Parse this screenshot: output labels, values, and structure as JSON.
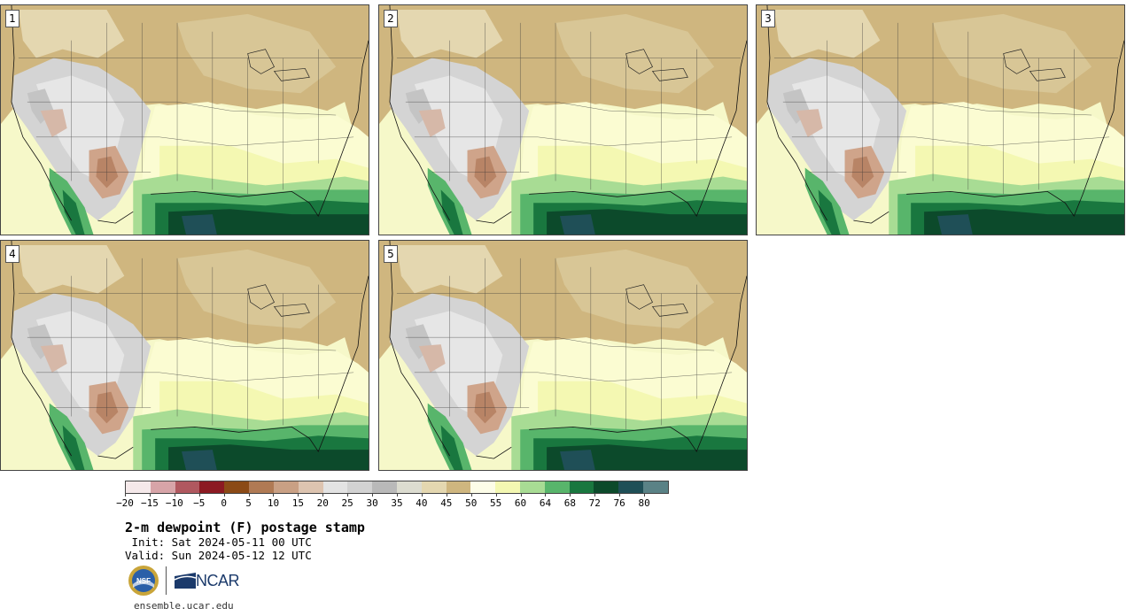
{
  "panels": [
    {
      "label": "1"
    },
    {
      "label": "2"
    },
    {
      "label": "3"
    },
    {
      "label": "4"
    },
    {
      "label": "5"
    }
  ],
  "colorbar": {
    "colors": [
      "#f5e9ea",
      "#d7a4a8",
      "#b0585f",
      "#8c1a22",
      "#8b4a16",
      "#b07a54",
      "#c9a084",
      "#ddc4b0",
      "#e3e3e3",
      "#d2d2d2",
      "#b9b9b9",
      "#dcdcd0",
      "#e4d7b0",
      "#cfb67f",
      "#fdfde8",
      "#f4f8b2",
      "#a8dc94",
      "#58b56b",
      "#19773f",
      "#0c4a2b",
      "#1f4f57",
      "#5a8286"
    ],
    "ticks": [
      "−20",
      "−15",
      "−10",
      "−5",
      "0",
      "5",
      "10",
      "15",
      "20",
      "25",
      "30",
      "35",
      "40",
      "45",
      "50",
      "55",
      "60",
      "64",
      "68",
      "72",
      "76",
      "80"
    ]
  },
  "title": "2-m dewpoint (F) postage stamp",
  "init": " Init: Sat 2024-05-11 00 UTC",
  "valid": "Valid: Sun 2024-05-12 12 UTC",
  "logos": {
    "nsf": "NSF",
    "ncar": "NCAR"
  },
  "url": "ensemble.ucar.edu"
}
